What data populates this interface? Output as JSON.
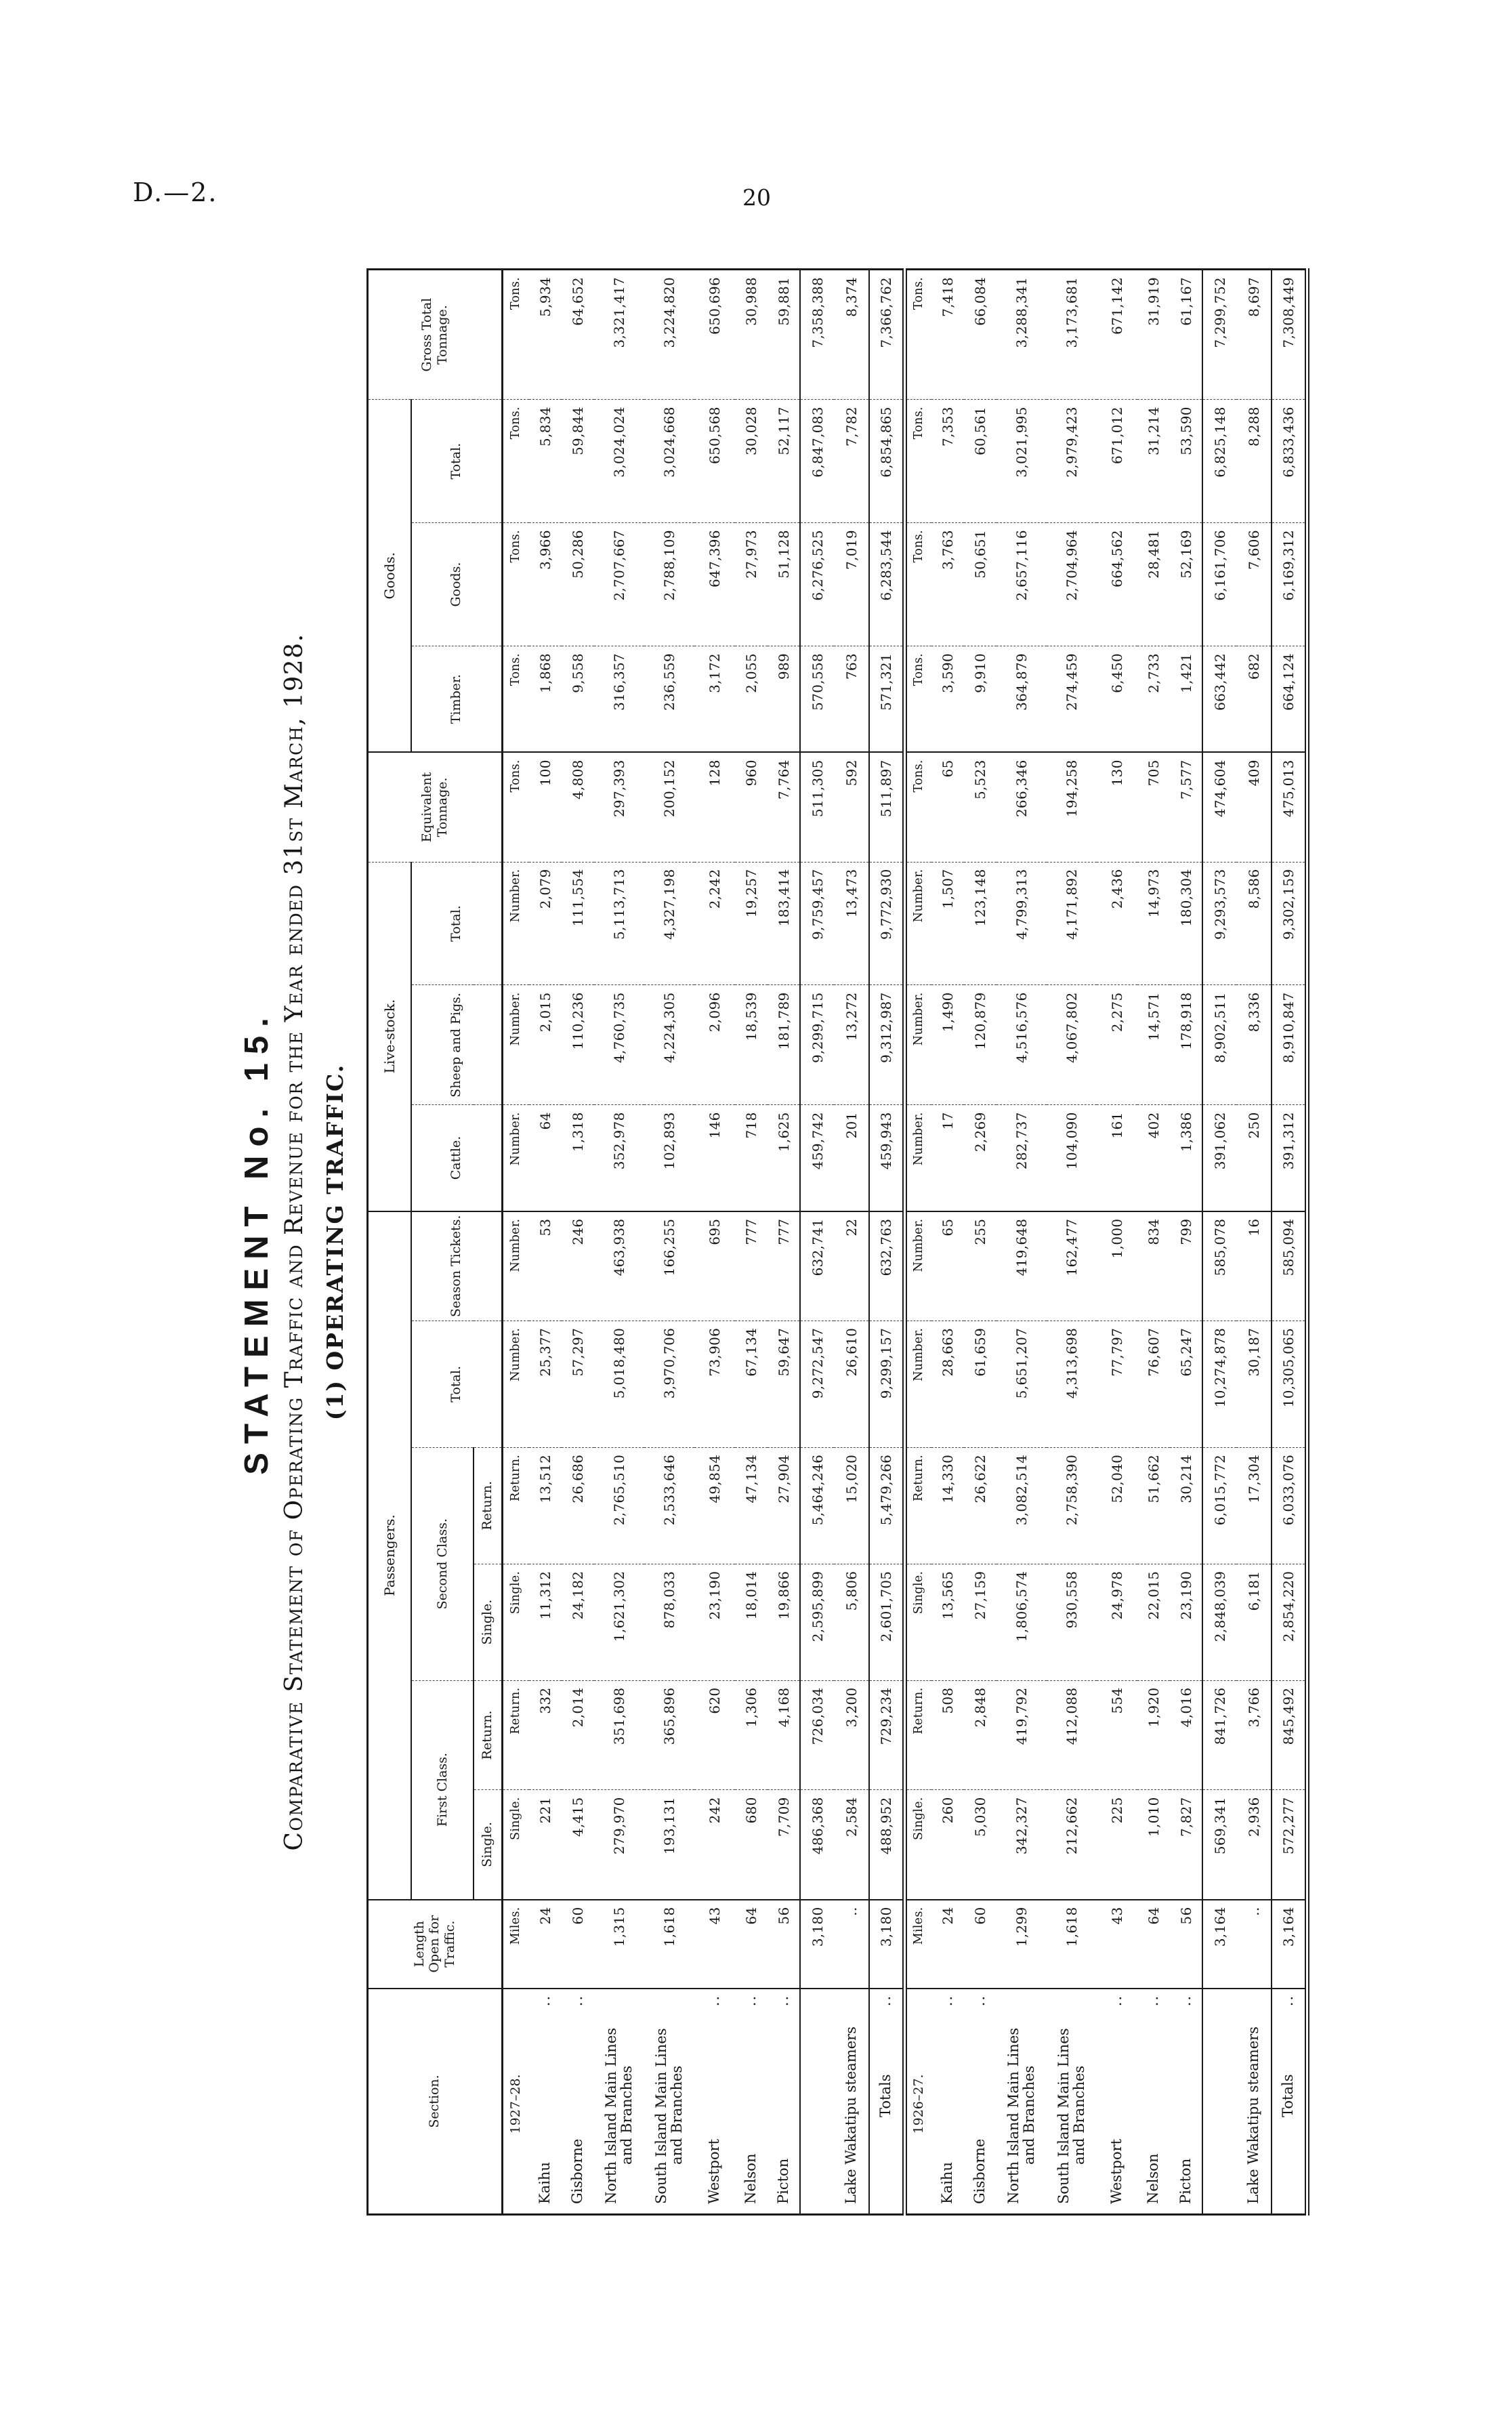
{
  "page": {
    "doc_id": "D.—2.",
    "page_number": "20"
  },
  "title": {
    "statement": "STATEMENT No. 15.",
    "subtitle": "Comparative Statement of Operating Traffic and Revenue for the Year ended 31st March, 1928.",
    "section_heading": "(1) OPERATING TRAFFIC."
  },
  "table": {
    "column_headers": {
      "section": "Section.",
      "length": "Length Open for Traffic.",
      "passengers": "Passengers.",
      "first_class": "First Class.",
      "second_class": "Second Class.",
      "single": "Single.",
      "return": "Return.",
      "total": "Total.",
      "season_tickets": "Season Tickets.",
      "live_stock": "Live-stock.",
      "cattle": "Cattle.",
      "sheep_and_pigs": "Sheep and Pigs.",
      "equivalent_tonnage": "Equivalent Tonnage.",
      "goods_group": "Goods.",
      "timber": "Timber.",
      "goods": "Goods.",
      "gross_total_tonnage": "Gross Total Tonnage."
    },
    "groups": [
      {
        "year_label": "1927–28.",
        "unit_row": [
          "Miles.",
          "Single.",
          "Return.",
          "Single.",
          "Return.",
          "Number.",
          "Number.",
          "Number.",
          "Number.",
          "Number.",
          "Tons.",
          "Tons.",
          "Tons.",
          "Tons.",
          "Tons."
        ],
        "rows": [
          {
            "label": "Kaihu",
            "label2": "",
            "dots": "..",
            "tall": false,
            "gap": false,
            "values": [
              "24",
              "221",
              "332",
              "11,312",
              "13,512",
              "25,377",
              "53",
              "64",
              "2,015",
              "2,079",
              "100",
              "1,868",
              "3,966",
              "5,834",
              "5,934"
            ]
          },
          {
            "label": "Gisborne",
            "label2": "",
            "dots": "..",
            "tall": false,
            "gap": false,
            "values": [
              "60",
              "4,415",
              "2,014",
              "24,182",
              "26,686",
              "57,297",
              "246",
              "1,318",
              "110,236",
              "111,554",
              "4,808",
              "9,558",
              "50,286",
              "59,844",
              "64,652"
            ]
          },
          {
            "label": "North Island Main Lines",
            "label2": "and Branches",
            "dots": "",
            "tall": true,
            "gap": false,
            "values": [
              "1,315",
              "279,970",
              "351,698",
              "1,621,302",
              "2,765,510",
              "5,018,480",
              "463,938",
              "352,978",
              "4,760,735",
              "5,113,713",
              "297,393",
              "316,357",
              "2,707,667",
              "3,024,024",
              "3,321,417"
            ]
          },
          {
            "label": "South Island Main Lines",
            "label2": "and Branches",
            "dots": "",
            "tall": true,
            "gap": false,
            "values": [
              "1,618",
              "193,131",
              "365,896",
              "878,033",
              "2,533,646",
              "3,970,706",
              "166,255",
              "102,893",
              "4,224,305",
              "4,327,198",
              "200,152",
              "236,559",
              "2,788,109",
              "3,024,668",
              "3,224,820"
            ]
          },
          {
            "label": "Westport",
            "label2": "",
            "dots": "..",
            "tall": false,
            "gap": true,
            "values": [
              "43",
              "242",
              "620",
              "23,190",
              "49,854",
              "73,906",
              "695",
              "146",
              "2,096",
              "2,242",
              "128",
              "3,172",
              "647,396",
              "650,568",
              "650,696"
            ]
          },
          {
            "label": "Nelson",
            "label2": "",
            "dots": "..",
            "tall": false,
            "gap": false,
            "values": [
              "64",
              "680",
              "1,306",
              "18,014",
              "47,134",
              "67,134",
              "777",
              "718",
              "18,539",
              "19,257",
              "960",
              "2,055",
              "27,973",
              "30,028",
              "30,988"
            ]
          },
          {
            "label": "Picton",
            "label2": "",
            "dots": "..",
            "tall": false,
            "gap": false,
            "values": [
              "56",
              "7,709",
              "4,168",
              "19,866",
              "27,904",
              "59,647",
              "777",
              "1,625",
              "181,789",
              "183,414",
              "7,764",
              "989",
              "51,128",
              "52,117",
              "59,881"
            ]
          }
        ],
        "subtotal_row": {
          "label": "",
          "values": [
            "3,180",
            "486,368",
            "726,034",
            "2,595,899",
            "5,464,246",
            "9,272,547",
            "632,741",
            "459,742",
            "9,299,715",
            "9,759,457",
            "511,305",
            "570,558",
            "6,276,525",
            "6,847,083",
            "7,358,388"
          ]
        },
        "lake_row": {
          "label": "Lake Wakatipu steamers",
          "values": [
            "..",
            "2,584",
            "3,200",
            "5,806",
            "15,020",
            "26,610",
            "22",
            "201",
            "13,272",
            "13,473",
            "592",
            "763",
            "7,019",
            "7,782",
            "8,374"
          ]
        },
        "totals_row": {
          "label": "Totals",
          "dots": "..",
          "values": [
            "3,180",
            "488,952",
            "729,234",
            "2,601,705",
            "5,479,266",
            "9,299,157",
            "632,763",
            "459,943",
            "9,312,987",
            "9,772,930",
            "511,897",
            "571,321",
            "6,283,544",
            "6,854,865",
            "7,366,762"
          ]
        }
      },
      {
        "year_label": "1926–27.",
        "unit_row": [
          "Miles.",
          "Single.",
          "Return.",
          "Single.",
          "Return.",
          "Number.",
          "Number.",
          "Number.",
          "Number.",
          "Number.",
          "Tons.",
          "Tons.",
          "Tons.",
          "Tons.",
          "Tons."
        ],
        "rows": [
          {
            "label": "Kaihu",
            "label2": "",
            "dots": "..",
            "tall": false,
            "gap": false,
            "values": [
              "24",
              "260",
              "508",
              "13,565",
              "14,330",
              "28,663",
              "65",
              "17",
              "1,490",
              "1,507",
              "65",
              "3,590",
              "3,763",
              "7,353",
              "7,418"
            ]
          },
          {
            "label": "Gisborne",
            "label2": "",
            "dots": "..",
            "tall": false,
            "gap": false,
            "values": [
              "60",
              "5,030",
              "2,848",
              "27,159",
              "26,622",
              "61,659",
              "255",
              "2,269",
              "120,879",
              "123,148",
              "5,523",
              "9,910",
              "50,651",
              "60,561",
              "66,084"
            ]
          },
          {
            "label": "North Island Main Lines",
            "label2": "and Branches",
            "dots": "",
            "tall": true,
            "gap": false,
            "values": [
              "1,299",
              "342,327",
              "419,792",
              "1,806,574",
              "3,082,514",
              "5,651,207",
              "419,648",
              "282,737",
              "4,516,576",
              "4,799,313",
              "266,346",
              "364,879",
              "2,657,116",
              "3,021,995",
              "3,288,341"
            ]
          },
          {
            "label": "South Island Main Lines",
            "label2": "and Branches",
            "dots": "",
            "tall": true,
            "gap": false,
            "values": [
              "1,618",
              "212,662",
              "412,088",
              "930,558",
              "2,758,390",
              "4,313,698",
              "162,477",
              "104,090",
              "4,067,802",
              "4,171,892",
              "194,258",
              "274,459",
              "2,704,964",
              "2,979,423",
              "3,173,681"
            ]
          },
          {
            "label": "Westport",
            "label2": "",
            "dots": "..",
            "tall": false,
            "gap": true,
            "values": [
              "43",
              "225",
              "554",
              "24,978",
              "52,040",
              "77,797",
              "1,000",
              "161",
              "2,275",
              "2,436",
              "130",
              "6,450",
              "664,562",
              "671,012",
              "671,142"
            ]
          },
          {
            "label": "Nelson",
            "label2": "",
            "dots": "..",
            "tall": false,
            "gap": false,
            "values": [
              "64",
              "1,010",
              "1,920",
              "22,015",
              "51,662",
              "76,607",
              "834",
              "402",
              "14,571",
              "14,973",
              "705",
              "2,733",
              "28,481",
              "31,214",
              "31,919"
            ]
          },
          {
            "label": "Picton",
            "label2": "",
            "dots": "..",
            "tall": false,
            "gap": false,
            "values": [
              "56",
              "7,827",
              "4,016",
              "23,190",
              "30,214",
              "65,247",
              "799",
              "1,386",
              "178,918",
              "180,304",
              "7,577",
              "1,421",
              "52,169",
              "53,590",
              "61,167"
            ]
          }
        ],
        "subtotal_row": {
          "label": "",
          "values": [
            "3,164",
            "569,341",
            "841,726",
            "2,848,039",
            "6,015,772",
            "10,274,878",
            "585,078",
            "391,062",
            "8,902,511",
            "9,293,573",
            "474,604",
            "663,442",
            "6,161,706",
            "6,825,148",
            "7,299,752"
          ]
        },
        "lake_row": {
          "label": "Lake Wakatipu steamers",
          "values": [
            "..",
            "2,936",
            "3,766",
            "6,181",
            "17,304",
            "30,187",
            "16",
            "250",
            "8,336",
            "8,586",
            "409",
            "682",
            "7,606",
            "8,288",
            "8,697"
          ]
        },
        "totals_row": {
          "label": "Totals",
          "dots": "..",
          "values": [
            "3,164",
            "572,277",
            "845,492",
            "2,854,220",
            "6,033,076",
            "10,305,065",
            "585,094",
            "391,312",
            "8,910,847",
            "9,302,159",
            "475,013",
            "664,124",
            "6,169,312",
            "6,833,436",
            "7,308,449"
          ]
        }
      }
    ]
  }
}
